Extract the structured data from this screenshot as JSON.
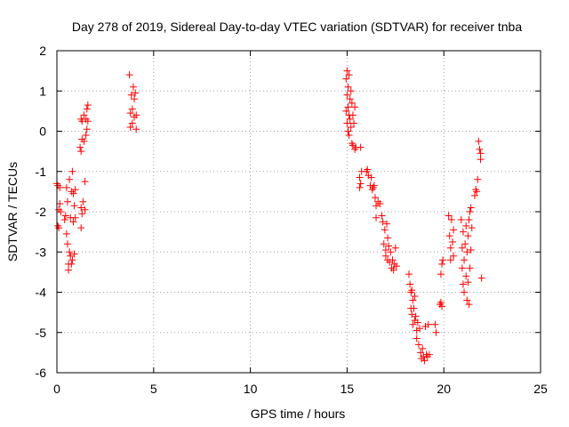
{
  "chart_data": {
    "type": "scatter",
    "title": "Day 278 of 2019, Sidereal Day-to-day VTEC variation (SDTVAR) for receiver tnba",
    "xlabel": "GPS time / hours",
    "ylabel": "SDTVAR / TECUs",
    "xlim": [
      0,
      25
    ],
    "ylim": [
      -6,
      2
    ],
    "x_ticks": [
      0,
      5,
      10,
      15,
      20,
      25
    ],
    "y_ticks": [
      -6,
      -5,
      -4,
      -3,
      -2,
      -1,
      0,
      1,
      2
    ],
    "grid": true,
    "marker": "+",
    "marker_color": "#ff0000",
    "series": [
      {
        "name": "SDTVAR",
        "points": [
          [
            0.0,
            -1.3
          ],
          [
            0.05,
            -1.35
          ],
          [
            0.05,
            -2.35
          ],
          [
            0.1,
            -1.95
          ],
          [
            0.1,
            -2.4
          ],
          [
            0.15,
            -1.4
          ],
          [
            0.15,
            -1.8
          ],
          [
            0.2,
            -2.0
          ],
          [
            0.4,
            -2.2
          ],
          [
            0.45,
            -2.1
          ],
          [
            0.5,
            -1.4
          ],
          [
            0.5,
            -2.55
          ],
          [
            0.55,
            -1.75
          ],
          [
            0.55,
            -2.8
          ],
          [
            0.6,
            -3.3
          ],
          [
            0.6,
            -3.45
          ],
          [
            0.65,
            -1.2
          ],
          [
            0.65,
            -3.0
          ],
          [
            0.7,
            -2.15
          ],
          [
            0.7,
            -3.1
          ],
          [
            0.75,
            -1.5
          ],
          [
            0.75,
            -3.3
          ],
          [
            0.8,
            -1.0
          ],
          [
            0.8,
            -3.2
          ],
          [
            0.85,
            -1.55
          ],
          [
            0.85,
            -2.25
          ],
          [
            0.9,
            -1.85
          ],
          [
            0.9,
            -3.05
          ],
          [
            0.95,
            -1.45
          ],
          [
            0.95,
            -2.15
          ],
          [
            1.2,
            -0.4
          ],
          [
            1.25,
            -0.5
          ],
          [
            1.25,
            0.3
          ],
          [
            1.25,
            -1.9
          ],
          [
            1.25,
            -2.4
          ],
          [
            1.3,
            -0.2
          ],
          [
            1.3,
            0.25
          ],
          [
            1.3,
            -2.05
          ],
          [
            1.35,
            -1.75
          ],
          [
            1.4,
            -0.25
          ],
          [
            1.4,
            0.4
          ],
          [
            1.45,
            -1.25
          ],
          [
            1.45,
            -1.95
          ],
          [
            1.5,
            0.3
          ],
          [
            1.5,
            -0.1
          ],
          [
            1.55,
            0.05
          ],
          [
            1.55,
            0.55
          ],
          [
            1.6,
            0.65
          ],
          [
            1.6,
            0.25
          ],
          [
            3.75,
            1.4
          ],
          [
            3.8,
            0.1
          ],
          [
            3.8,
            0.45
          ],
          [
            3.85,
            0.9
          ],
          [
            3.9,
            0.55
          ],
          [
            3.9,
            0.2
          ],
          [
            3.95,
            1.1
          ],
          [
            4.0,
            0.35
          ],
          [
            4.0,
            0.8
          ],
          [
            4.05,
            0.95
          ],
          [
            4.1,
            0.4
          ],
          [
            4.1,
            0.05
          ],
          [
            14.95,
            1.3
          ],
          [
            14.95,
            0.5
          ],
          [
            15.0,
            1.5
          ],
          [
            15.0,
            0.9
          ],
          [
            15.0,
            0.2
          ],
          [
            15.05,
            1.1
          ],
          [
            15.05,
            0.6
          ],
          [
            15.05,
            0.0
          ],
          [
            15.1,
            1.4
          ],
          [
            15.1,
            0.4
          ],
          [
            15.1,
            -0.1
          ],
          [
            15.15,
            0.8
          ],
          [
            15.15,
            0.3
          ],
          [
            15.2,
            1.0
          ],
          [
            15.2,
            0.1
          ],
          [
            15.25,
            0.7
          ],
          [
            15.25,
            -0.3
          ],
          [
            15.3,
            0.4
          ],
          [
            15.3,
            -0.35
          ],
          [
            15.35,
            0.2
          ],
          [
            15.4,
            0.6
          ],
          [
            15.4,
            -0.45
          ],
          [
            15.45,
            -0.4
          ],
          [
            15.7,
            -0.4
          ],
          [
            15.65,
            -1.15
          ],
          [
            15.65,
            -1.4
          ],
          [
            15.7,
            -1.3
          ],
          [
            15.75,
            -1.0
          ],
          [
            16.0,
            -1.0
          ],
          [
            16.05,
            -0.95
          ],
          [
            16.1,
            -1.1
          ],
          [
            16.2,
            -1.35
          ],
          [
            16.25,
            -1.15
          ],
          [
            16.3,
            -1.45
          ],
          [
            16.35,
            -1.4
          ],
          [
            16.4,
            -1.35
          ],
          [
            16.45,
            -1.65
          ],
          [
            16.5,
            -1.85
          ],
          [
            16.5,
            -2.15
          ],
          [
            16.6,
            -1.75
          ],
          [
            16.7,
            -1.8
          ],
          [
            16.8,
            -2.1
          ],
          [
            16.85,
            -2.25
          ],
          [
            16.9,
            -2.8
          ],
          [
            16.95,
            -2.45
          ],
          [
            17.0,
            -2.95
          ],
          [
            17.0,
            -3.1
          ],
          [
            17.05,
            -2.3
          ],
          [
            17.1,
            -3.2
          ],
          [
            17.1,
            -2.65
          ],
          [
            17.15,
            -2.85
          ],
          [
            17.2,
            -3.25
          ],
          [
            17.25,
            -3.0
          ],
          [
            17.3,
            -3.4
          ],
          [
            17.35,
            -3.2
          ],
          [
            17.4,
            -3.45
          ],
          [
            17.45,
            -3.3
          ],
          [
            17.5,
            -2.9
          ],
          [
            17.55,
            -3.35
          ],
          [
            18.2,
            -3.55
          ],
          [
            18.25,
            -3.8
          ],
          [
            18.3,
            -4.0
          ],
          [
            18.3,
            -4.4
          ],
          [
            18.35,
            -3.95
          ],
          [
            18.35,
            -4.55
          ],
          [
            18.4,
            -4.2
          ],
          [
            18.4,
            -4.8
          ],
          [
            18.45,
            -4.4
          ],
          [
            18.5,
            -4.1
          ],
          [
            18.5,
            -4.7
          ],
          [
            18.55,
            -4.6
          ],
          [
            18.6,
            -4.95
          ],
          [
            18.6,
            -5.15
          ],
          [
            18.65,
            -4.75
          ],
          [
            18.7,
            -5.3
          ],
          [
            18.75,
            -4.9
          ],
          [
            18.8,
            -5.5
          ],
          [
            18.85,
            -5.65
          ],
          [
            18.9,
            -5.4
          ],
          [
            18.95,
            -5.6
          ],
          [
            19.0,
            -5.7
          ],
          [
            19.05,
            -4.85
          ],
          [
            19.1,
            -5.55
          ],
          [
            19.15,
            -5.6
          ],
          [
            19.2,
            -4.8
          ],
          [
            19.25,
            -5.55
          ],
          [
            19.55,
            -4.8
          ],
          [
            19.6,
            -5.0
          ],
          [
            19.8,
            -4.3
          ],
          [
            19.85,
            -4.25
          ],
          [
            19.9,
            -4.35
          ],
          [
            19.85,
            -3.55
          ],
          [
            19.9,
            -3.3
          ],
          [
            19.95,
            -3.2
          ],
          [
            20.25,
            -2.1
          ],
          [
            20.3,
            -2.6
          ],
          [
            20.35,
            -2.9
          ],
          [
            20.35,
            -3.2
          ],
          [
            20.4,
            -2.2
          ],
          [
            20.45,
            -2.75
          ],
          [
            20.5,
            -3.1
          ],
          [
            20.5,
            -2.45
          ],
          [
            20.9,
            -2.2
          ],
          [
            20.95,
            -3.4
          ],
          [
            20.95,
            -2.9
          ],
          [
            21.0,
            -3.8
          ],
          [
            21.0,
            -2.5
          ],
          [
            21.05,
            -3.2
          ],
          [
            21.05,
            -4.0
          ],
          [
            21.1,
            -2.8
          ],
          [
            21.15,
            -3.6
          ],
          [
            21.15,
            -2.35
          ],
          [
            21.2,
            -4.2
          ],
          [
            21.2,
            -3.0
          ],
          [
            21.25,
            -2.6
          ],
          [
            21.25,
            -3.75
          ],
          [
            21.3,
            -4.3
          ],
          [
            21.3,
            -2.2
          ],
          [
            21.35,
            -3.4
          ],
          [
            21.35,
            -2.0
          ],
          [
            21.4,
            -2.95
          ],
          [
            21.4,
            -1.9
          ],
          [
            21.45,
            -2.4
          ],
          [
            21.6,
            -1.6
          ],
          [
            21.65,
            -1.45
          ],
          [
            21.7,
            -1.5
          ],
          [
            21.75,
            -1.2
          ],
          [
            21.8,
            -0.25
          ],
          [
            21.85,
            -0.45
          ],
          [
            21.9,
            -0.7
          ],
          [
            21.9,
            -0.55
          ],
          [
            21.95,
            -3.65
          ]
        ]
      }
    ]
  }
}
